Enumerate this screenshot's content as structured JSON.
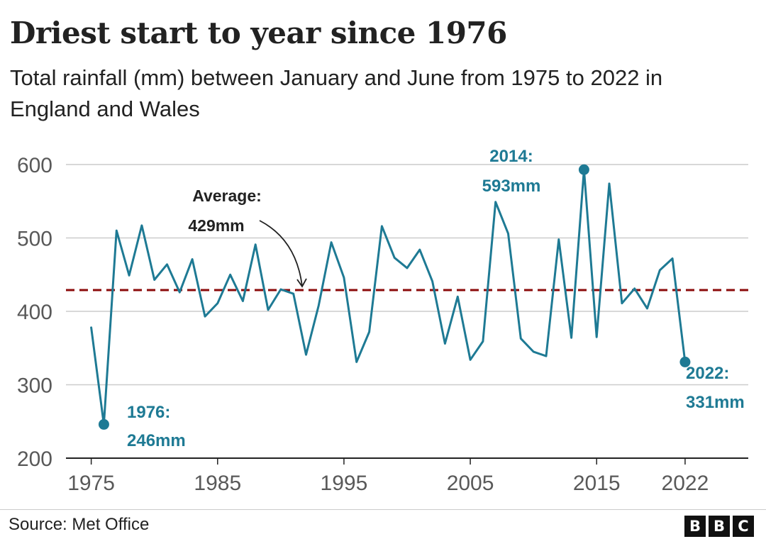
{
  "header": {
    "title": "Driest start to year since 1976",
    "subtitle": "Total rainfall (mm) between January and June from 1975 to 2022 in England and Wales"
  },
  "footer": {
    "source": "Source: Met Office",
    "logo_letters": [
      "B",
      "B",
      "C"
    ]
  },
  "colors": {
    "series": "#1e7a94",
    "average": "#8b0a0a",
    "grid": "#cccccc",
    "axis": "#222222",
    "text": "#222222",
    "tick_text": "#595959"
  },
  "chart_data": {
    "type": "line",
    "title": "Driest start to year since 1976",
    "subtitle": "Total rainfall (mm) between January and June from 1975 to 2022 in England and Wales",
    "xlabel": "",
    "ylabel": "",
    "xlim": [
      1973,
      2027
    ],
    "ylim": [
      200,
      600
    ],
    "grid": true,
    "xticks": [
      1975,
      1985,
      1995,
      2005,
      2015,
      2022
    ],
    "yticks": [
      200,
      300,
      400,
      500,
      600
    ],
    "x": [
      1975,
      1976,
      1977,
      1978,
      1979,
      1980,
      1981,
      1982,
      1983,
      1984,
      1985,
      1986,
      1987,
      1988,
      1989,
      1990,
      1991,
      1992,
      1993,
      1994,
      1995,
      1996,
      1997,
      1998,
      1999,
      2000,
      2001,
      2002,
      2003,
      2004,
      2005,
      2006,
      2007,
      2008,
      2009,
      2010,
      2011,
      2012,
      2013,
      2014,
      2015,
      2016,
      2017,
      2018,
      2019,
      2020,
      2021,
      2022
    ],
    "series": [
      {
        "values": [
          378,
          246,
          510,
          449,
          517,
          443,
          464,
          426,
          471,
          393,
          411,
          450,
          414,
          491,
          402,
          430,
          424,
          341,
          408,
          494,
          446,
          331,
          372,
          516,
          473,
          459,
          484,
          441,
          356,
          420,
          334,
          359,
          549,
          506,
          363,
          345,
          339,
          498,
          364,
          593,
          365,
          574,
          411,
          431,
          404,
          456,
          472,
          331
        ]
      }
    ],
    "average": {
      "value": 429,
      "label_line1": "Average:",
      "label_line2": "429mm"
    },
    "annotations": [
      {
        "x": 1976,
        "y": 246,
        "line1": "1976:",
        "line2": "246mm"
      },
      {
        "x": 2014,
        "y": 593,
        "line1": "2014:",
        "line2": "593mm"
      },
      {
        "x": 2022,
        "y": 331,
        "line1": "2022:",
        "line2": "331mm"
      }
    ]
  }
}
